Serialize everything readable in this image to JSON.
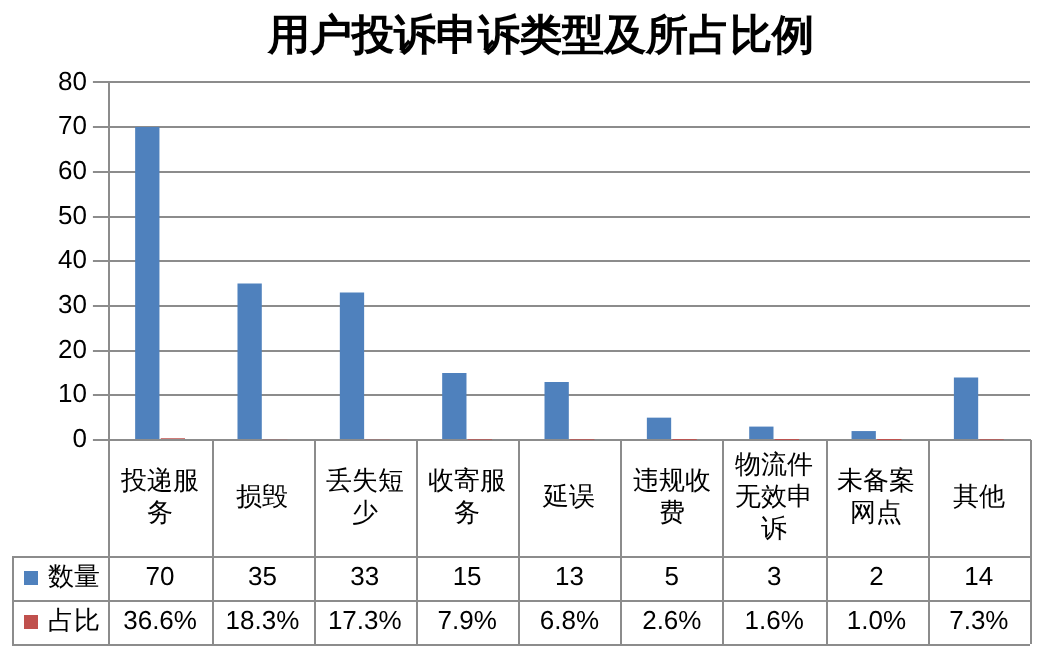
{
  "chart_data": {
    "type": "bar",
    "title": "用户投诉申诉类型及所占比例",
    "categories": [
      "投递服务",
      "损毁",
      "丢失短少",
      "收寄服务",
      "延误",
      "违规收费",
      "物流件无效申诉",
      "未备案网点",
      "其他"
    ],
    "series": [
      {
        "name": "数量",
        "color": "#4f81bd",
        "values": [
          70,
          35,
          33,
          15,
          13,
          5,
          3,
          2,
          14
        ]
      },
      {
        "name": "占比",
        "color": "#c0504d",
        "values": [
          0.366,
          0.183,
          0.173,
          0.079,
          0.068,
          0.026,
          0.016,
          0.01,
          0.073
        ],
        "value_labels": [
          "36.6%",
          "18.3%",
          "17.3%",
          "7.9%",
          "6.8%",
          "2.6%",
          "1.6%",
          "1.0%",
          "7.3%"
        ]
      }
    ],
    "ylim": [
      0,
      80
    ],
    "yticks": [
      0,
      10,
      20,
      30,
      40,
      50,
      60,
      70,
      80
    ],
    "grid": "y",
    "legend": "bottom",
    "data_labels": true
  }
}
